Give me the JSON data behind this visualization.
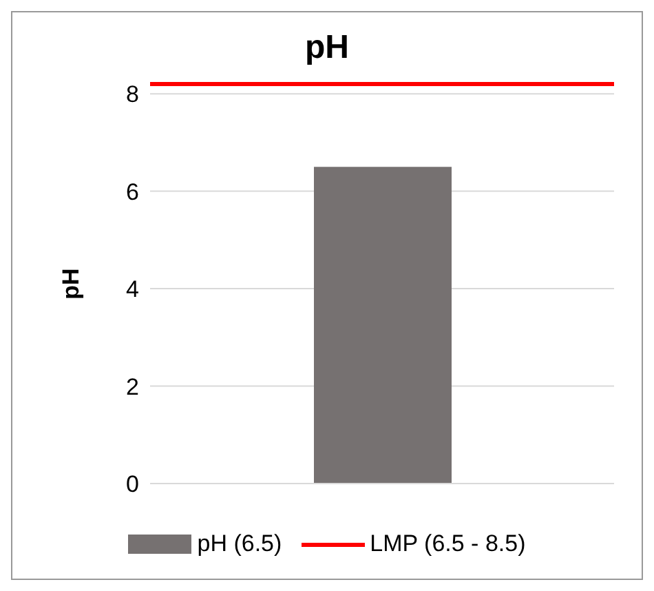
{
  "chart_data": {
    "type": "bar",
    "title": "pH",
    "ylabel": "pH",
    "categories": [
      null
    ],
    "series": [
      {
        "name": "pH (6.5)",
        "color": "#767171",
        "values": [
          6.5
        ]
      }
    ],
    "ylim": [
      0,
      8.2
    ],
    "yticks": [
      0,
      2,
      4,
      6,
      8
    ],
    "grid": "y",
    "legend": "bottom",
    "ref_lines": [
      {
        "axis": "y",
        "value": 8.2,
        "label": "LMP (6.5 - 8.5)",
        "color": "#ff0000"
      }
    ]
  }
}
